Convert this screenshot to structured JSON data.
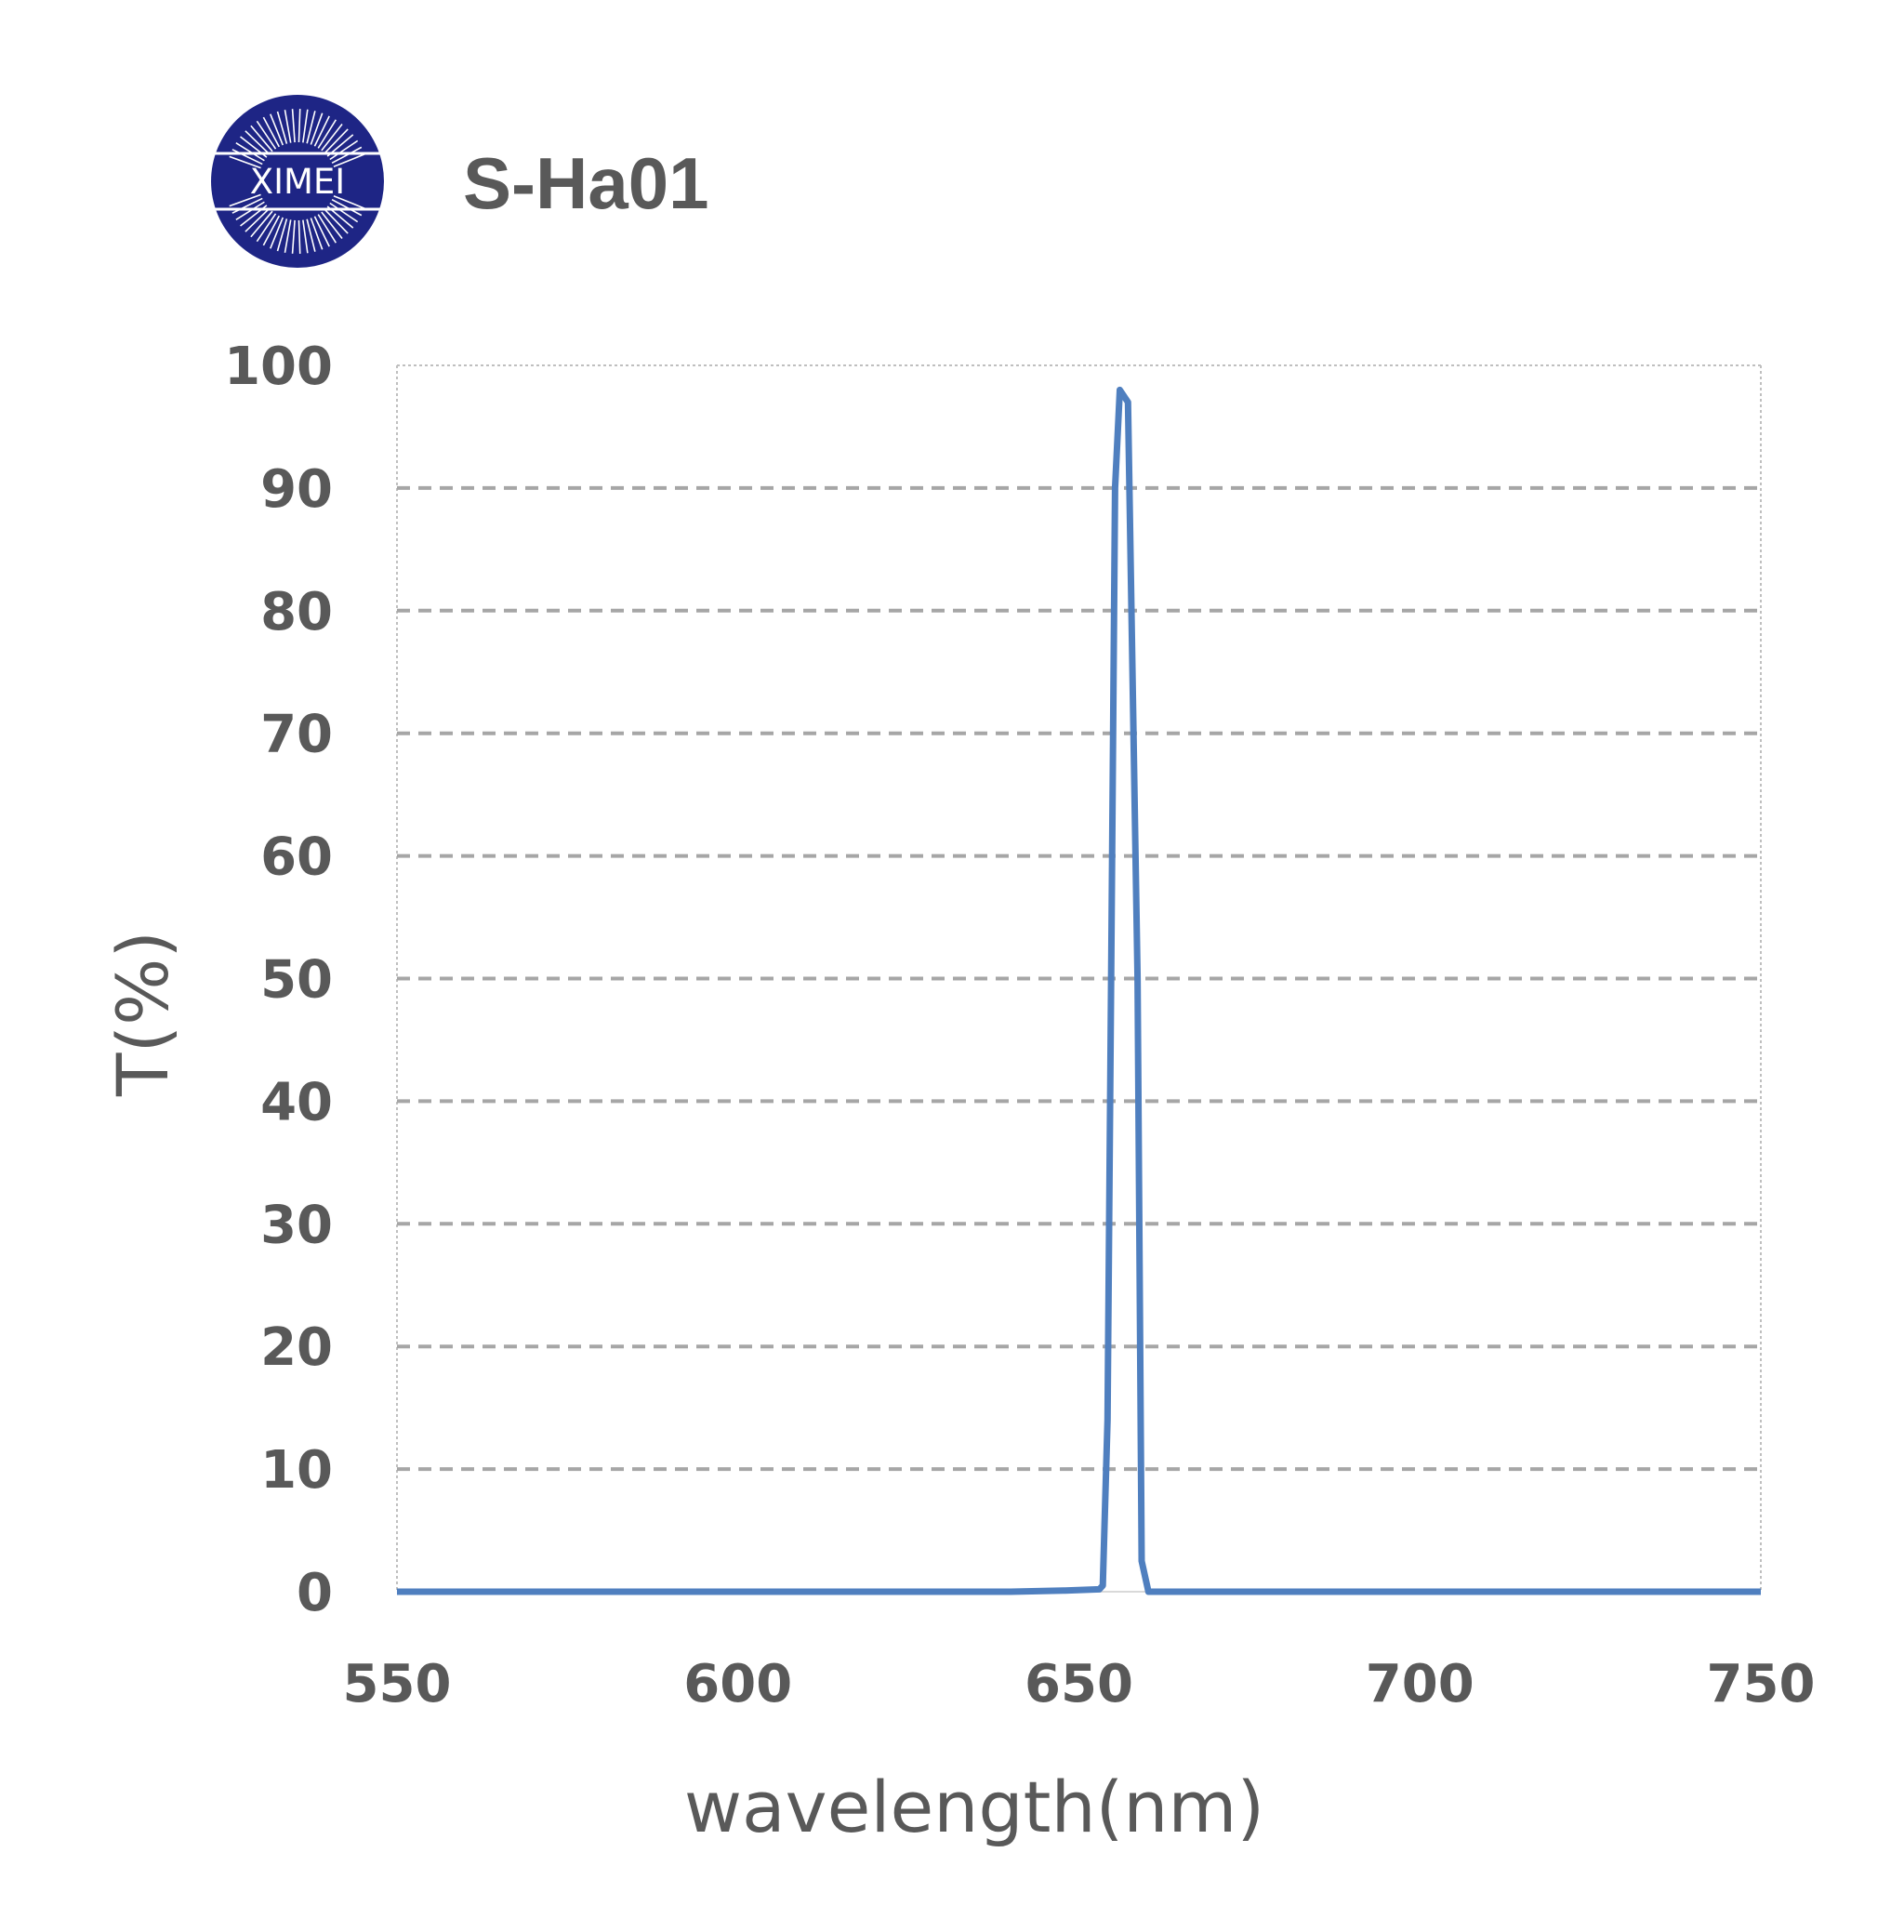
{
  "header": {
    "logo_text": "XIMEI",
    "title": "S-Ha01"
  },
  "colors": {
    "line": "#4f7fbf",
    "grid": "#a6a6a6",
    "text": "#595959",
    "logo_bg": "#1e2585"
  },
  "chart_data": {
    "type": "line",
    "title": "S-Ha01",
    "xlabel": "wavelength(nm)",
    "ylabel": "T(%)",
    "xlim": [
      550,
      750
    ],
    "ylim": [
      0,
      100
    ],
    "xticks": [
      "550",
      "600",
      "650",
      "700",
      "750"
    ],
    "yticks": [
      "0",
      "10",
      "20",
      "30",
      "40",
      "50",
      "60",
      "70",
      "80",
      "90",
      "100"
    ],
    "grid": true,
    "legend": "none",
    "series": [
      {
        "values": [
          [
            550,
            0
          ],
          [
            600,
            0
          ],
          [
            640,
            0
          ],
          [
            648,
            0.1
          ],
          [
            653,
            0.2
          ],
          [
            653.5,
            0.5
          ],
          [
            654.2,
            14
          ],
          [
            654.8,
            55
          ],
          [
            655.3,
            90
          ],
          [
            656,
            98
          ],
          [
            657.2,
            97
          ],
          [
            658.6,
            50
          ],
          [
            659.2,
            2.5
          ],
          [
            660.2,
            0
          ],
          [
            680,
            0
          ],
          [
            750,
            0
          ]
        ]
      }
    ]
  }
}
